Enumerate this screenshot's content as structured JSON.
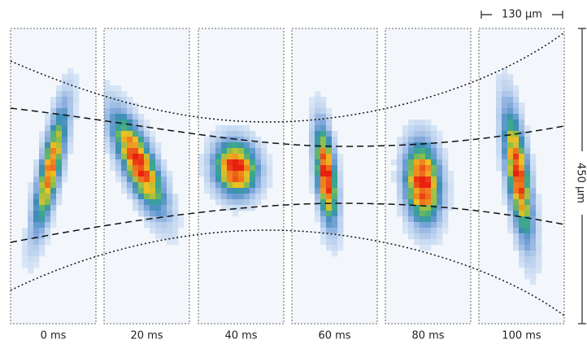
{
  "panels": [
    {
      "label": "0 ms"
    },
    {
      "label": "20 ms"
    },
    {
      "label": "40 ms"
    },
    {
      "label": "60 ms"
    },
    {
      "label": "80 ms"
    },
    {
      "label": "100 ms"
    }
  ],
  "scale_bars": {
    "width": "130 μm",
    "height": "450 μm"
  }
}
